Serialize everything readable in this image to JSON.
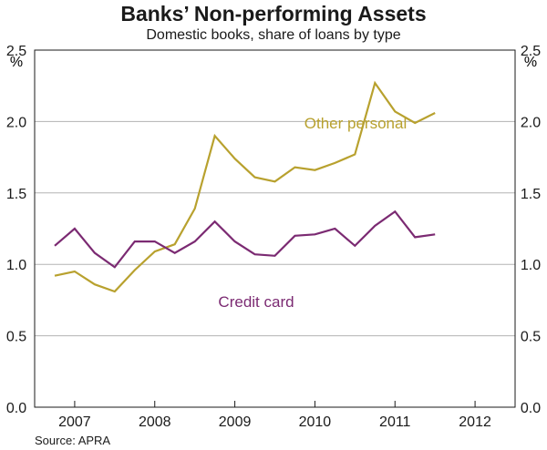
{
  "chart_data": {
    "type": "line",
    "title": "Banks’ Non-performing Assets",
    "subtitle": "Domestic books, share of loans by type",
    "source": "Source: APRA",
    "y_unit_left": "%",
    "y_unit_right": "%",
    "ylim": [
      0,
      2.5
    ],
    "xlim": [
      2006.5,
      2012.5
    ],
    "y_ticks": [
      0.0,
      0.5,
      1.0,
      1.5,
      2.0,
      2.5
    ],
    "y_tick_labels": [
      "0.0",
      "0.5",
      "1.0",
      "1.5",
      "2.0",
      "2.5"
    ],
    "x_year_boundaries": [
      2007,
      2008,
      2009,
      2010,
      2011,
      2012
    ],
    "x_labels": [
      "2007",
      "2008",
      "2009",
      "2010",
      "2011",
      "2012"
    ],
    "x_label_positions": [
      2006.5,
      2007.5,
      2008.5,
      2009.5,
      2010.5,
      2011.5
    ],
    "x": [
      2006.75,
      2007.0,
      2007.25,
      2007.5,
      2007.75,
      2008.0,
      2008.25,
      2008.5,
      2008.75,
      2009.0,
      2009.25,
      2009.5,
      2009.75,
      2010.0,
      2010.25,
      2010.5,
      2010.75,
      2011.0,
      2011.25,
      2011.5,
      2011.75
    ],
    "series": [
      {
        "name": "Other personal",
        "color": "#b8a12e",
        "values": [
          0.92,
          0.95,
          0.86,
          0.81,
          0.96,
          1.09,
          1.14,
          1.39,
          1.9,
          1.74,
          1.61,
          1.58,
          1.68,
          1.66,
          1.71,
          1.77,
          2.27,
          2.07,
          1.99,
          2.06,
          null
        ]
      },
      {
        "name": "Credit card",
        "color": "#7b2a72",
        "values": [
          1.13,
          1.25,
          1.08,
          0.98,
          1.16,
          1.16,
          1.08,
          1.16,
          1.3,
          1.16,
          1.07,
          1.06,
          1.2,
          1.21,
          1.25,
          1.13,
          1.27,
          1.37,
          1.19,
          1.21,
          null
        ]
      }
    ],
    "annotations": [
      {
        "text": "Other personal",
        "series": "Other personal"
      },
      {
        "text": "Credit card",
        "series": "Credit card"
      }
    ],
    "grid": true
  }
}
